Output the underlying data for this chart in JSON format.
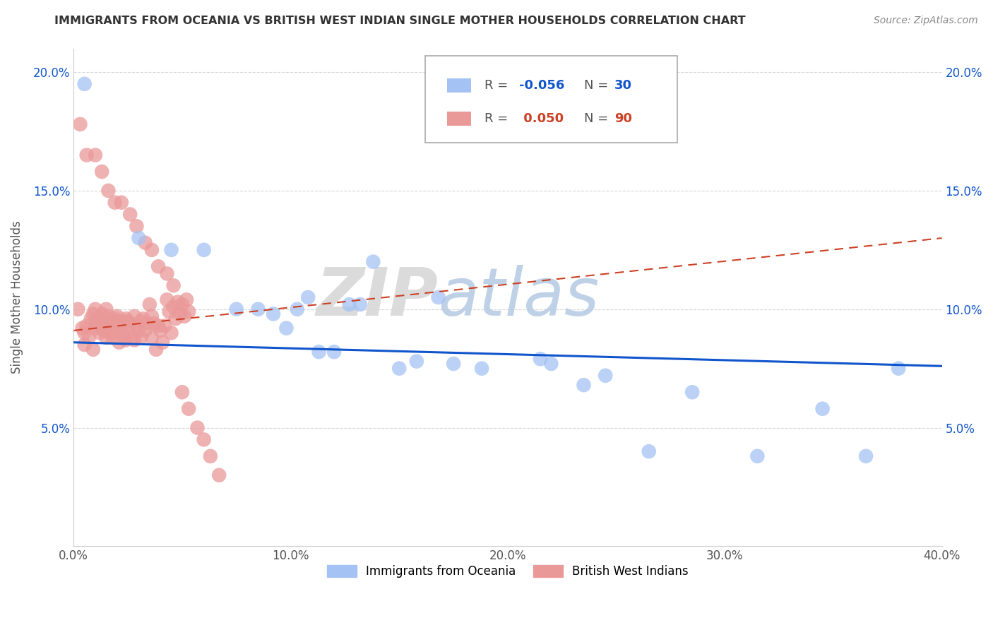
{
  "title": "IMMIGRANTS FROM OCEANIA VS BRITISH WEST INDIAN SINGLE MOTHER HOUSEHOLDS CORRELATION CHART",
  "source": "Source: ZipAtlas.com",
  "ylabel": "Single Mother Households",
  "xmin": 0.0,
  "xmax": 0.4,
  "ymin": 0.0,
  "ymax": 0.21,
  "yticks": [
    0.05,
    0.1,
    0.15,
    0.2
  ],
  "ytick_labels": [
    "5.0%",
    "10.0%",
    "15.0%",
    "20.0%"
  ],
  "xticks": [
    0.0,
    0.1,
    0.2,
    0.3,
    0.4
  ],
  "xtick_labels": [
    "0.0%",
    "10.0%",
    "20.0%",
    "30.0%",
    "40.0%"
  ],
  "legend1_label": "Immigrants from Oceania",
  "legend2_label": "British West Indians",
  "R_blue": -0.056,
  "N_blue": 30,
  "R_pink": 0.05,
  "N_pink": 90,
  "blue_color": "#a4c2f4",
  "pink_color": "#ea9999",
  "blue_line_color": "#1155cc",
  "pink_line_color": "#cc4125",
  "watermark_zip": "ZIP",
  "watermark_atlas": "atlas",
  "background_color": "#ffffff",
  "grid_color": "#cccccc",
  "blue_points_x": [
    0.005,
    0.03,
    0.045,
    0.06,
    0.075,
    0.085,
    0.092,
    0.098,
    0.103,
    0.108,
    0.113,
    0.12,
    0.127,
    0.132,
    0.138,
    0.15,
    0.158,
    0.168,
    0.175,
    0.188,
    0.215,
    0.22,
    0.235,
    0.245,
    0.265,
    0.285,
    0.315,
    0.345,
    0.365,
    0.38
  ],
  "blue_points_y": [
    0.195,
    0.13,
    0.125,
    0.125,
    0.1,
    0.1,
    0.098,
    0.092,
    0.1,
    0.105,
    0.082,
    0.082,
    0.102,
    0.102,
    0.12,
    0.075,
    0.078,
    0.105,
    0.077,
    0.075,
    0.079,
    0.077,
    0.068,
    0.072,
    0.04,
    0.065,
    0.038,
    0.058,
    0.038,
    0.075
  ],
  "pink_points_x": [
    0.002,
    0.004,
    0.005,
    0.005,
    0.006,
    0.007,
    0.008,
    0.009,
    0.009,
    0.01,
    0.01,
    0.01,
    0.011,
    0.012,
    0.012,
    0.013,
    0.013,
    0.014,
    0.014,
    0.015,
    0.015,
    0.016,
    0.016,
    0.017,
    0.018,
    0.018,
    0.019,
    0.019,
    0.02,
    0.02,
    0.021,
    0.021,
    0.022,
    0.022,
    0.023,
    0.024,
    0.024,
    0.025,
    0.025,
    0.026,
    0.027,
    0.028,
    0.028,
    0.029,
    0.03,
    0.031,
    0.031,
    0.032,
    0.033,
    0.034,
    0.035,
    0.036,
    0.036,
    0.037,
    0.038,
    0.039,
    0.04,
    0.041,
    0.042,
    0.043,
    0.044,
    0.045,
    0.046,
    0.047,
    0.048,
    0.049,
    0.05,
    0.051,
    0.052,
    0.053,
    0.003,
    0.006,
    0.01,
    0.013,
    0.016,
    0.019,
    0.022,
    0.026,
    0.029,
    0.033,
    0.036,
    0.039,
    0.043,
    0.046,
    0.05,
    0.053,
    0.057,
    0.06,
    0.063,
    0.067
  ],
  "pink_points_y": [
    0.1,
    0.092,
    0.09,
    0.085,
    0.093,
    0.088,
    0.096,
    0.083,
    0.098,
    0.095,
    0.092,
    0.1,
    0.093,
    0.096,
    0.09,
    0.098,
    0.093,
    0.091,
    0.096,
    0.088,
    0.1,
    0.093,
    0.097,
    0.09,
    0.095,
    0.088,
    0.096,
    0.091,
    0.093,
    0.097,
    0.086,
    0.093,
    0.09,
    0.095,
    0.089,
    0.096,
    0.087,
    0.095,
    0.091,
    0.094,
    0.088,
    0.097,
    0.087,
    0.093,
    0.091,
    0.095,
    0.088,
    0.096,
    0.091,
    0.094,
    0.102,
    0.097,
    0.088,
    0.094,
    0.083,
    0.093,
    0.091,
    0.086,
    0.093,
    0.104,
    0.099,
    0.09,
    0.101,
    0.096,
    0.103,
    0.098,
    0.102,
    0.097,
    0.104,
    0.099,
    0.178,
    0.165,
    0.165,
    0.158,
    0.15,
    0.145,
    0.145,
    0.14,
    0.135,
    0.128,
    0.125,
    0.118,
    0.115,
    0.11,
    0.065,
    0.058,
    0.05,
    0.045,
    0.038,
    0.03
  ],
  "blue_trendline_x": [
    0.0,
    0.4
  ],
  "blue_trendline_y": [
    0.086,
    0.076
  ],
  "pink_trendline_x": [
    0.0,
    0.4
  ],
  "pink_trendline_y": [
    0.091,
    0.13
  ]
}
